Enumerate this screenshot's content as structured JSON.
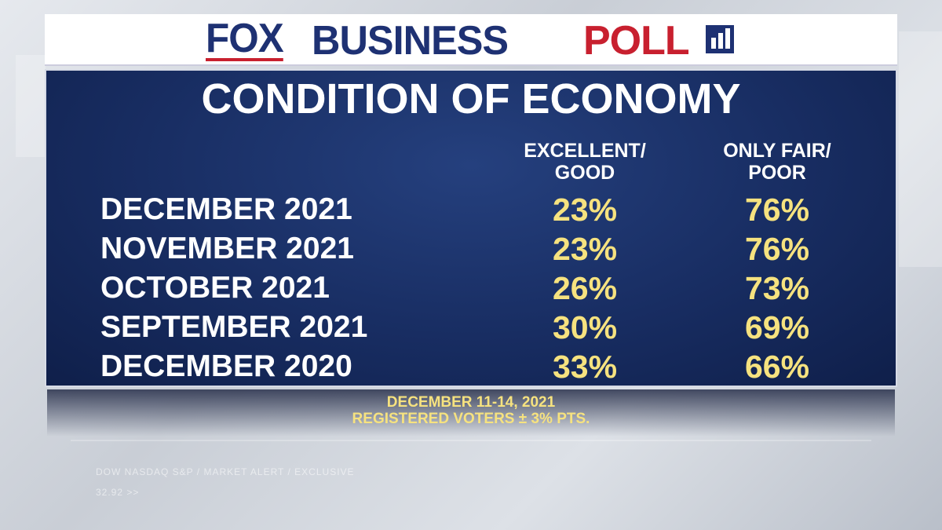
{
  "header": {
    "brand_fox": "FOX",
    "brand_business": "BUSINESS",
    "brand_poll": "POLL"
  },
  "title": "CONDITION OF ECONOMY",
  "table": {
    "columns": [
      "EXCELLENT/\nGOOD",
      "ONLY FAIR/\nPOOR"
    ],
    "rows": [
      [
        "DECEMBER 2021",
        "23%",
        "76%"
      ],
      [
        "NOVEMBER 2021",
        "23%",
        "76%"
      ],
      [
        "OCTOBER 2021",
        "26%",
        "73%"
      ],
      [
        "SEPTEMBER 2021",
        "30%",
        "69%"
      ],
      [
        "DECEMBER 2020",
        "33%",
        "66%"
      ]
    ]
  },
  "footer": {
    "dates": "DECEMBER 11-14, 2021",
    "sample": "REGISTERED VOTERS ± 3% PTS."
  },
  "background_text": [
    "DOW NASDAQ S&P  /  MARKET ALERT  /  EXCLUSIVE",
    "32.92 >>"
  ]
}
